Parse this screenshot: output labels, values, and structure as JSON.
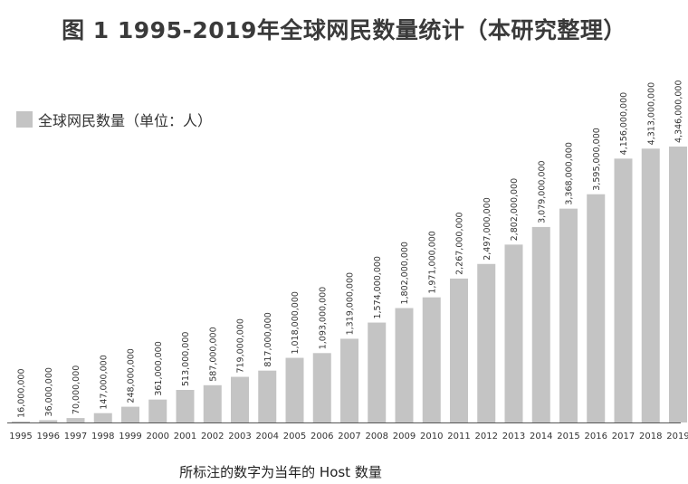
{
  "chart_data": {
    "type": "bar",
    "title": "图 1  1995-2019年全球网民数量统计（本研究整理）",
    "footnote": "所标注的数字为当年的 Host 数量",
    "legend": {
      "label": "全球网民数量（单位：人）",
      "position": "top-left"
    },
    "series_color": "#c4c4c4",
    "categories": [
      "1995",
      "1996",
      "1997",
      "1998",
      "1999",
      "2000",
      "2001",
      "2002",
      "2003",
      "2004",
      "2005",
      "2006",
      "2007",
      "2008",
      "2009",
      "2010",
      "2011",
      "2012",
      "2013",
      "2014",
      "2015",
      "2016",
      "2017",
      "2018",
      "2019"
    ],
    "values": [
      16000000,
      36000000,
      70000000,
      147000000,
      248000000,
      361000000,
      513000000,
      587000000,
      719000000,
      817000000,
      1018000000,
      1093000000,
      1319000000,
      1574000000,
      1802000000,
      1971000000,
      2267000000,
      2497000000,
      2802000000,
      3079000000,
      3368000000,
      3595000000,
      4156000000,
      4313000000,
      4346000000
    ],
    "value_labels": [
      "16,000,000",
      "36,000,000",
      "70,000,000",
      "147,000,000",
      "248,000,000",
      "361,000,000",
      "513,000,000",
      "587,000,000",
      "719,000,000",
      "817,000,000",
      "1,018,000,000",
      "1,093,000,000",
      "1,319,000,000",
      "1,574,000,000",
      "1,802,000,000",
      "1,971,000,000",
      "2,267,000,000",
      "2,497,000,000",
      "2,802,000,000",
      "3,079,000,000",
      "3,368,000,000",
      "3,595,000,000",
      "4,156,000,000",
      "4,313,000,000",
      "4,346,000,000"
    ],
    "ylim": [
      0,
      4346000000
    ],
    "grid": false
  }
}
